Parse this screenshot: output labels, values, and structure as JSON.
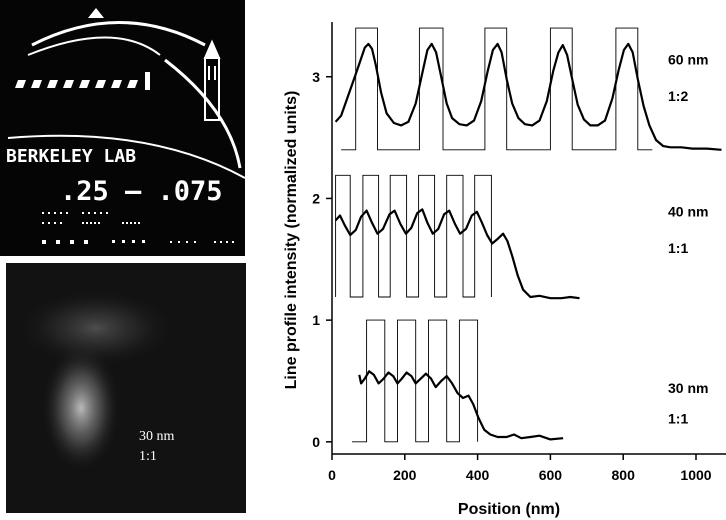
{
  "images": {
    "top": {
      "banner_text": "BERKELEY LAB",
      "dimension_text": ".25 – .075",
      "colors": {
        "background": "#050505",
        "foreground": "#ffffff"
      }
    },
    "bottom": {
      "caption_line1": "30 nm",
      "caption_line2": "1:1"
    }
  },
  "chart_data": {
    "type": "line",
    "title": "",
    "xlabel": "Position (nm)",
    "ylabel": "Line profile intensity (normalized units)",
    "xlim": [
      0,
      1100
    ],
    "ylim": [
      -0.1,
      3.45
    ],
    "xticks": [
      0,
      200,
      400,
      600,
      800,
      1000
    ],
    "yticks": [
      0,
      1,
      2,
      3
    ],
    "grid": false,
    "series": [
      {
        "name": "60 nm 1:2",
        "label_lines": [
          "60 nm",
          "1:2"
        ],
        "label_y": [
          3.1,
          2.8
        ],
        "line_profile": [
          [
            10,
            2.63
          ],
          [
            25,
            2.68
          ],
          [
            45,
            2.85
          ],
          [
            65,
            3.02
          ],
          [
            80,
            3.15
          ],
          [
            90,
            3.24
          ],
          [
            100,
            3.27
          ],
          [
            110,
            3.23
          ],
          [
            120,
            3.1
          ],
          [
            135,
            2.87
          ],
          [
            150,
            2.7
          ],
          [
            170,
            2.62
          ],
          [
            190,
            2.6
          ],
          [
            210,
            2.63
          ],
          [
            230,
            2.78
          ],
          [
            248,
            3.03
          ],
          [
            262,
            3.22
          ],
          [
            274,
            3.27
          ],
          [
            286,
            3.2
          ],
          [
            300,
            3.0
          ],
          [
            315,
            2.78
          ],
          [
            330,
            2.66
          ],
          [
            350,
            2.61
          ],
          [
            370,
            2.6
          ],
          [
            390,
            2.64
          ],
          [
            410,
            2.8
          ],
          [
            428,
            3.05
          ],
          [
            442,
            3.22
          ],
          [
            455,
            3.27
          ],
          [
            466,
            3.2
          ],
          [
            480,
            2.98
          ],
          [
            495,
            2.78
          ],
          [
            512,
            2.66
          ],
          [
            530,
            2.61
          ],
          [
            550,
            2.6
          ],
          [
            570,
            2.64
          ],
          [
            590,
            2.8
          ],
          [
            608,
            3.05
          ],
          [
            622,
            3.2
          ],
          [
            634,
            3.26
          ],
          [
            646,
            3.18
          ],
          [
            660,
            2.98
          ],
          [
            675,
            2.77
          ],
          [
            692,
            2.65
          ],
          [
            710,
            2.6
          ],
          [
            730,
            2.6
          ],
          [
            750,
            2.64
          ],
          [
            770,
            2.82
          ],
          [
            788,
            3.06
          ],
          [
            802,
            3.22
          ],
          [
            814,
            3.27
          ],
          [
            826,
            3.2
          ],
          [
            840,
            2.98
          ],
          [
            856,
            2.76
          ],
          [
            872,
            2.6
          ],
          [
            890,
            2.48
          ],
          [
            910,
            2.43
          ],
          [
            930,
            2.42
          ],
          [
            960,
            2.42
          ],
          [
            990,
            2.41
          ],
          [
            1030,
            2.41
          ],
          [
            1070,
            2.4
          ]
        ],
        "grating_x": [
          [
            65,
            125
          ],
          [
            240,
            305
          ],
          [
            420,
            480
          ],
          [
            600,
            660
          ],
          [
            780,
            840
          ]
        ],
        "grating_low": 2.4,
        "grating_high": 3.4,
        "grating_end": 880
      },
      {
        "name": "40 nm 1:1",
        "label_lines": [
          "40 nm",
          "1:1"
        ],
        "label_y": [
          1.85,
          1.55
        ],
        "line_profile": [
          [
            10,
            1.82
          ],
          [
            22,
            1.86
          ],
          [
            35,
            1.78
          ],
          [
            50,
            1.7
          ],
          [
            65,
            1.74
          ],
          [
            80,
            1.85
          ],
          [
            95,
            1.9
          ],
          [
            110,
            1.8
          ],
          [
            125,
            1.71
          ],
          [
            140,
            1.75
          ],
          [
            158,
            1.87
          ],
          [
            172,
            1.9
          ],
          [
            188,
            1.79
          ],
          [
            203,
            1.71
          ],
          [
            218,
            1.76
          ],
          [
            234,
            1.88
          ],
          [
            248,
            1.91
          ],
          [
            262,
            1.8
          ],
          [
            277,
            1.71
          ],
          [
            292,
            1.75
          ],
          [
            308,
            1.87
          ],
          [
            322,
            1.9
          ],
          [
            338,
            1.79
          ],
          [
            352,
            1.71
          ],
          [
            368,
            1.75
          ],
          [
            384,
            1.86
          ],
          [
            398,
            1.89
          ],
          [
            412,
            1.8
          ],
          [
            426,
            1.7
          ],
          [
            440,
            1.63
          ],
          [
            456,
            1.67
          ],
          [
            470,
            1.71
          ],
          [
            482,
            1.65
          ],
          [
            496,
            1.52
          ],
          [
            510,
            1.37
          ],
          [
            525,
            1.25
          ],
          [
            545,
            1.19
          ],
          [
            570,
            1.2
          ],
          [
            600,
            1.18
          ],
          [
            630,
            1.18
          ],
          [
            655,
            1.19
          ],
          [
            680,
            1.18
          ]
        ],
        "grating_x": [
          [
            10,
            50
          ],
          [
            85,
            128
          ],
          [
            160,
            205
          ],
          [
            238,
            282
          ],
          [
            315,
            360
          ],
          [
            392,
            438
          ]
        ],
        "grating_low": 1.19,
        "grating_high": 2.19,
        "grating_end": 438
      },
      {
        "name": "30 nm 1:1",
        "label_lines": [
          "30 nm",
          "1:1"
        ],
        "label_y": [
          0.4,
          0.15
        ],
        "line_profile": [
          [
            75,
            0.55
          ],
          [
            80,
            0.48
          ],
          [
            90,
            0.52
          ],
          [
            102,
            0.58
          ],
          [
            115,
            0.55
          ],
          [
            128,
            0.48
          ],
          [
            142,
            0.52
          ],
          [
            155,
            0.57
          ],
          [
            168,
            0.54
          ],
          [
            180,
            0.48
          ],
          [
            192,
            0.52
          ],
          [
            205,
            0.57
          ],
          [
            218,
            0.54
          ],
          [
            230,
            0.48
          ],
          [
            244,
            0.52
          ],
          [
            258,
            0.56
          ],
          [
            272,
            0.52
          ],
          [
            285,
            0.45
          ],
          [
            300,
            0.5
          ],
          [
            315,
            0.54
          ],
          [
            330,
            0.48
          ],
          [
            345,
            0.4
          ],
          [
            360,
            0.36
          ],
          [
            375,
            0.38
          ],
          [
            388,
            0.31
          ],
          [
            402,
            0.2
          ],
          [
            418,
            0.1
          ],
          [
            435,
            0.06
          ],
          [
            455,
            0.04
          ],
          [
            480,
            0.04
          ],
          [
            500,
            0.06
          ],
          [
            520,
            0.03
          ],
          [
            545,
            0.04
          ],
          [
            570,
            0.05
          ],
          [
            600,
            0.02
          ],
          [
            635,
            0.03
          ]
        ],
        "grating_x": [
          [
            95,
            145
          ],
          [
            180,
            230
          ],
          [
            265,
            315
          ],
          [
            350,
            400
          ]
        ],
        "grating_low": 0.0,
        "grating_high": 1.0,
        "grating_end": 400
      }
    ]
  }
}
